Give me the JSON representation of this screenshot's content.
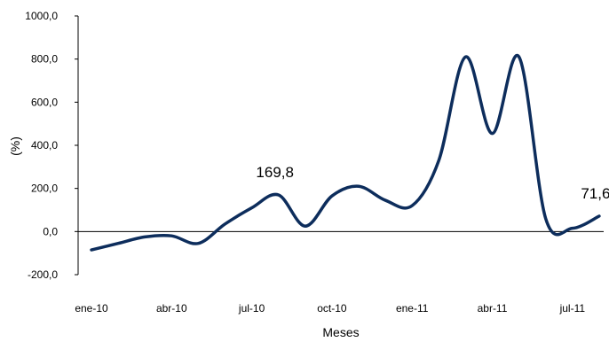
{
  "chart_data": {
    "type": "line",
    "title": "",
    "xlabel": "Meses",
    "ylabel": "(%)",
    "ylim": [
      -200,
      1000
    ],
    "yticks": [
      -200,
      0,
      200,
      400,
      600,
      800,
      1000
    ],
    "ytick_labels": [
      "-200,0",
      "0,0",
      "200,0",
      "400,0",
      "600,0",
      "800,0",
      "1000,0"
    ],
    "x_tick_labels": [
      "ene-10",
      "abr-10",
      "jul-10",
      "oct-10",
      "ene-11",
      "abr-11",
      "jul-11"
    ],
    "x_tick_positions": [
      0,
      3,
      6,
      9,
      12,
      15,
      18
    ],
    "x": [
      "ene-10",
      "feb-10",
      "mar-10",
      "abr-10",
      "may-10",
      "jun-10",
      "jul-10",
      "ago-10",
      "sep-10",
      "oct-10",
      "nov-10",
      "dic-10",
      "ene-11",
      "feb-11",
      "mar-11",
      "abr-11",
      "may-11",
      "jun-11",
      "jul-11",
      "ago-11"
    ],
    "series": [
      {
        "color": "#0d2d5c",
        "values": [
          -85,
          -55,
          -25,
          -20,
          -55,
          35,
          110,
          169.8,
          25,
          165,
          210,
          145,
          120,
          330,
          810,
          455,
          810,
          60,
          15,
          71.6
        ]
      }
    ],
    "annotations": [
      {
        "text": "169,8",
        "x_index": 7
      },
      {
        "text": "71,6",
        "x_index": 19
      }
    ],
    "grid": false
  }
}
